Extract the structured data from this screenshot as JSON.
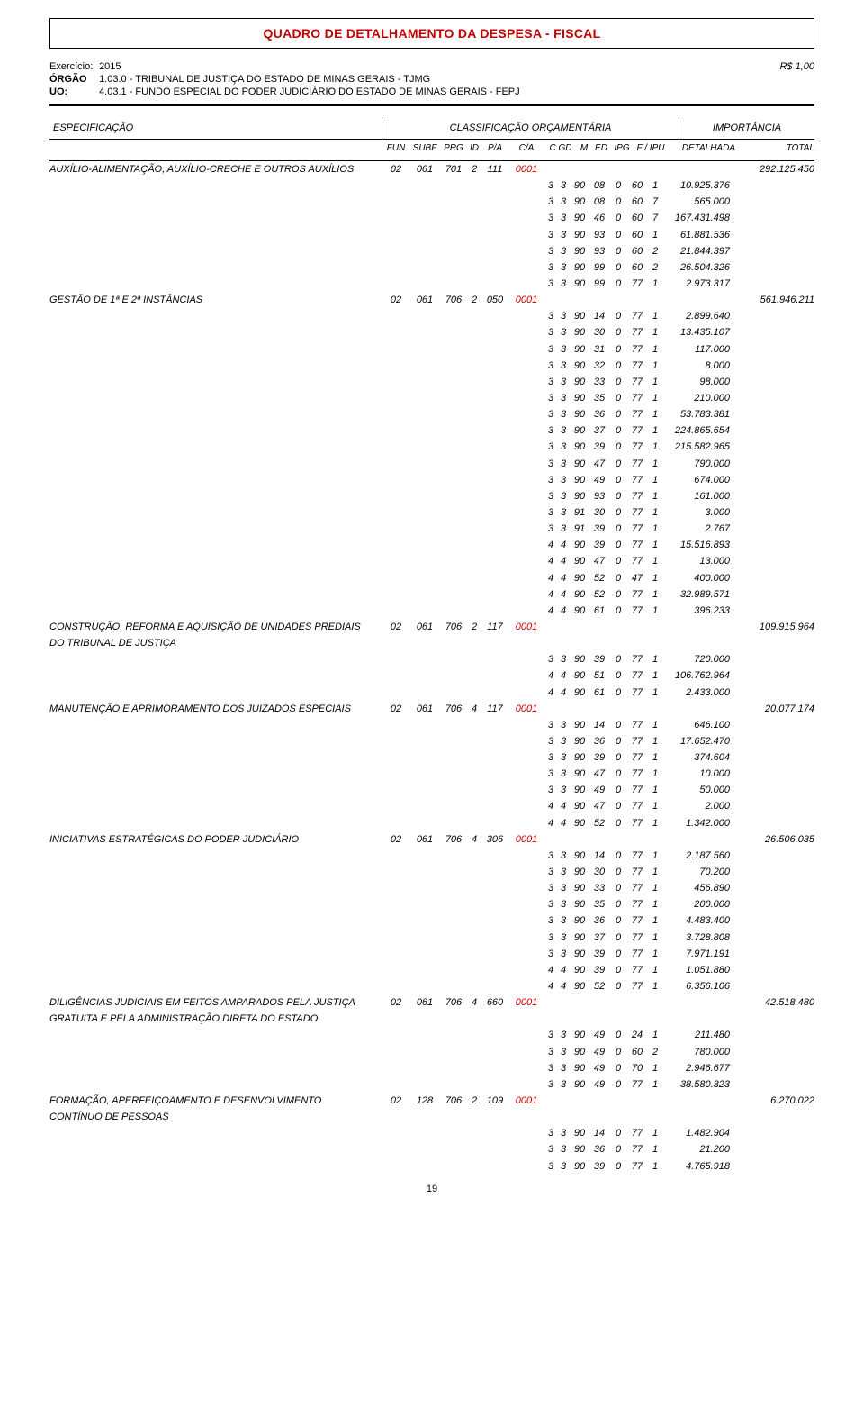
{
  "colors": {
    "accent": "#c00000",
    "text": "#000000",
    "bg": "#ffffff"
  },
  "title": "QUADRO DE DETALHAMENTO DA DESPESA - FISCAL",
  "currency_note": "R$ 1,00",
  "exercicio_label": "Exercício:",
  "exercicio_value": "2015",
  "orgao_label": "ÓRGÃO",
  "orgao_value": "1.03.0  -  TRIBUNAL DE JUSTIÇA DO ESTADO DE MINAS GERAIS  -  TJMG",
  "uo_label": "UO:",
  "uo_value": "4.03.1  -  FUNDO ESPECIAL DO PODER JUDICIÁRIO DO ESTADO DE MINAS GERAIS  -  FEPJ",
  "col_headers": {
    "spec": "ESPECIFICAÇÃO",
    "class": "CLASSIFICAÇÃO ORÇAMENTÁRIA",
    "imp": "IMPORTÂNCIA"
  },
  "subcol_headers": {
    "fun": "FUN",
    "subf": "SUBF",
    "prg": "PRG",
    "id": "ID",
    "pa": "P/A",
    "ca": "C/A",
    "cgd": "C GD",
    "m": "M",
    "ed": "ED",
    "ipg": "IPG",
    "fipu": "F / IPU",
    "det": "DETALHADA",
    "tot": "TOTAL"
  },
  "page_number": "19",
  "groups": [
    {
      "spec": "AUXÍLIO-ALIMENTAÇÃO, AUXÍLIO-CRECHE E OUTROS AUXÍLIOS",
      "fun": "02",
      "subf": "061",
      "prg": "701",
      "id": "2",
      "pa": "111",
      "ca": "0001",
      "total": "292.125.450",
      "rows": [
        {
          "c": "3",
          "gd": "3",
          "m": "90",
          "ed": "08",
          "ipg": "0",
          "f": "60",
          "ipu": "1",
          "val": "10.925.376"
        },
        {
          "c": "3",
          "gd": "3",
          "m": "90",
          "ed": "08",
          "ipg": "0",
          "f": "60",
          "ipu": "7",
          "val": "565.000"
        },
        {
          "c": "3",
          "gd": "3",
          "m": "90",
          "ed": "46",
          "ipg": "0",
          "f": "60",
          "ipu": "7",
          "val": "167.431.498"
        },
        {
          "c": "3",
          "gd": "3",
          "m": "90",
          "ed": "93",
          "ipg": "0",
          "f": "60",
          "ipu": "1",
          "val": "61.881.536"
        },
        {
          "c": "3",
          "gd": "3",
          "m": "90",
          "ed": "93",
          "ipg": "0",
          "f": "60",
          "ipu": "2",
          "val": "21.844.397"
        },
        {
          "c": "3",
          "gd": "3",
          "m": "90",
          "ed": "99",
          "ipg": "0",
          "f": "60",
          "ipu": "2",
          "val": "26.504.326"
        },
        {
          "c": "3",
          "gd": "3",
          "m": "90",
          "ed": "99",
          "ipg": "0",
          "f": "77",
          "ipu": "1",
          "val": "2.973.317"
        }
      ]
    },
    {
      "spec": "GESTÃO DE 1ª E 2ª INSTÂNCIAS",
      "fun": "02",
      "subf": "061",
      "prg": "706",
      "id": "2",
      "pa": "050",
      "ca": "0001",
      "total": "561.946.211",
      "rows": [
        {
          "c": "3",
          "gd": "3",
          "m": "90",
          "ed": "14",
          "ipg": "0",
          "f": "77",
          "ipu": "1",
          "val": "2.899.640"
        },
        {
          "c": "3",
          "gd": "3",
          "m": "90",
          "ed": "30",
          "ipg": "0",
          "f": "77",
          "ipu": "1",
          "val": "13.435.107"
        },
        {
          "c": "3",
          "gd": "3",
          "m": "90",
          "ed": "31",
          "ipg": "0",
          "f": "77",
          "ipu": "1",
          "val": "117.000"
        },
        {
          "c": "3",
          "gd": "3",
          "m": "90",
          "ed": "32",
          "ipg": "0",
          "f": "77",
          "ipu": "1",
          "val": "8.000"
        },
        {
          "c": "3",
          "gd": "3",
          "m": "90",
          "ed": "33",
          "ipg": "0",
          "f": "77",
          "ipu": "1",
          "val": "98.000"
        },
        {
          "c": "3",
          "gd": "3",
          "m": "90",
          "ed": "35",
          "ipg": "0",
          "f": "77",
          "ipu": "1",
          "val": "210.000"
        },
        {
          "c": "3",
          "gd": "3",
          "m": "90",
          "ed": "36",
          "ipg": "0",
          "f": "77",
          "ipu": "1",
          "val": "53.783.381"
        },
        {
          "c": "3",
          "gd": "3",
          "m": "90",
          "ed": "37",
          "ipg": "0",
          "f": "77",
          "ipu": "1",
          "val": "224.865.654"
        },
        {
          "c": "3",
          "gd": "3",
          "m": "90",
          "ed": "39",
          "ipg": "0",
          "f": "77",
          "ipu": "1",
          "val": "215.582.965"
        },
        {
          "c": "3",
          "gd": "3",
          "m": "90",
          "ed": "47",
          "ipg": "0",
          "f": "77",
          "ipu": "1",
          "val": "790.000"
        },
        {
          "c": "3",
          "gd": "3",
          "m": "90",
          "ed": "49",
          "ipg": "0",
          "f": "77",
          "ipu": "1",
          "val": "674.000"
        },
        {
          "c": "3",
          "gd": "3",
          "m": "90",
          "ed": "93",
          "ipg": "0",
          "f": "77",
          "ipu": "1",
          "val": "161.000"
        },
        {
          "c": "3",
          "gd": "3",
          "m": "91",
          "ed": "30",
          "ipg": "0",
          "f": "77",
          "ipu": "1",
          "val": "3.000"
        },
        {
          "c": "3",
          "gd": "3",
          "m": "91",
          "ed": "39",
          "ipg": "0",
          "f": "77",
          "ipu": "1",
          "val": "2.767"
        },
        {
          "c": "4",
          "gd": "4",
          "m": "90",
          "ed": "39",
          "ipg": "0",
          "f": "77",
          "ipu": "1",
          "val": "15.516.893"
        },
        {
          "c": "4",
          "gd": "4",
          "m": "90",
          "ed": "47",
          "ipg": "0",
          "f": "77",
          "ipu": "1",
          "val": "13.000"
        },
        {
          "c": "4",
          "gd": "4",
          "m": "90",
          "ed": "52",
          "ipg": "0",
          "f": "47",
          "ipu": "1",
          "val": "400.000"
        },
        {
          "c": "4",
          "gd": "4",
          "m": "90",
          "ed": "52",
          "ipg": "0",
          "f": "77",
          "ipu": "1",
          "val": "32.989.571"
        },
        {
          "c": "4",
          "gd": "4",
          "m": "90",
          "ed": "61",
          "ipg": "0",
          "f": "77",
          "ipu": "1",
          "val": "396.233"
        }
      ]
    },
    {
      "spec": "CONSTRUÇÃO, REFORMA E AQUISIÇÃO DE UNIDADES PREDIAIS DO TRIBUNAL DE JUSTIÇA",
      "fun": "02",
      "subf": "061",
      "prg": "706",
      "id": "2",
      "pa": "117",
      "ca": "0001",
      "total": "109.915.964",
      "rows": [
        {
          "c": "3",
          "gd": "3",
          "m": "90",
          "ed": "39",
          "ipg": "0",
          "f": "77",
          "ipu": "1",
          "val": "720.000"
        },
        {
          "c": "4",
          "gd": "4",
          "m": "90",
          "ed": "51",
          "ipg": "0",
          "f": "77",
          "ipu": "1",
          "val": "106.762.964"
        },
        {
          "c": "4",
          "gd": "4",
          "m": "90",
          "ed": "61",
          "ipg": "0",
          "f": "77",
          "ipu": "1",
          "val": "2.433.000"
        }
      ]
    },
    {
      "spec": "MANUTENÇÃO E APRIMORAMENTO DOS JUIZADOS ESPECIAIS",
      "fun": "02",
      "subf": "061",
      "prg": "706",
      "id": "4",
      "pa": "117",
      "ca": "0001",
      "total": "20.077.174",
      "rows": [
        {
          "c": "3",
          "gd": "3",
          "m": "90",
          "ed": "14",
          "ipg": "0",
          "f": "77",
          "ipu": "1",
          "val": "646.100"
        },
        {
          "c": "3",
          "gd": "3",
          "m": "90",
          "ed": "36",
          "ipg": "0",
          "f": "77",
          "ipu": "1",
          "val": "17.652.470"
        },
        {
          "c": "3",
          "gd": "3",
          "m": "90",
          "ed": "39",
          "ipg": "0",
          "f": "77",
          "ipu": "1",
          "val": "374.604"
        },
        {
          "c": "3",
          "gd": "3",
          "m": "90",
          "ed": "47",
          "ipg": "0",
          "f": "77",
          "ipu": "1",
          "val": "10.000"
        },
        {
          "c": "3",
          "gd": "3",
          "m": "90",
          "ed": "49",
          "ipg": "0",
          "f": "77",
          "ipu": "1",
          "val": "50.000"
        },
        {
          "c": "4",
          "gd": "4",
          "m": "90",
          "ed": "47",
          "ipg": "0",
          "f": "77",
          "ipu": "1",
          "val": "2.000"
        },
        {
          "c": "4",
          "gd": "4",
          "m": "90",
          "ed": "52",
          "ipg": "0",
          "f": "77",
          "ipu": "1",
          "val": "1.342.000"
        }
      ]
    },
    {
      "spec": "INICIATIVAS ESTRATÉGICAS DO PODER JUDICIÁRIO",
      "fun": "02",
      "subf": "061",
      "prg": "706",
      "id": "4",
      "pa": "306",
      "ca": "0001",
      "total": "26.506.035",
      "rows": [
        {
          "c": "3",
          "gd": "3",
          "m": "90",
          "ed": "14",
          "ipg": "0",
          "f": "77",
          "ipu": "1",
          "val": "2.187.560"
        },
        {
          "c": "3",
          "gd": "3",
          "m": "90",
          "ed": "30",
          "ipg": "0",
          "f": "77",
          "ipu": "1",
          "val": "70.200"
        },
        {
          "c": "3",
          "gd": "3",
          "m": "90",
          "ed": "33",
          "ipg": "0",
          "f": "77",
          "ipu": "1",
          "val": "456.890"
        },
        {
          "c": "3",
          "gd": "3",
          "m": "90",
          "ed": "35",
          "ipg": "0",
          "f": "77",
          "ipu": "1",
          "val": "200.000"
        },
        {
          "c": "3",
          "gd": "3",
          "m": "90",
          "ed": "36",
          "ipg": "0",
          "f": "77",
          "ipu": "1",
          "val": "4.483.400"
        },
        {
          "c": "3",
          "gd": "3",
          "m": "90",
          "ed": "37",
          "ipg": "0",
          "f": "77",
          "ipu": "1",
          "val": "3.728.808"
        },
        {
          "c": "3",
          "gd": "3",
          "m": "90",
          "ed": "39",
          "ipg": "0",
          "f": "77",
          "ipu": "1",
          "val": "7.971.191"
        },
        {
          "c": "4",
          "gd": "4",
          "m": "90",
          "ed": "39",
          "ipg": "0",
          "f": "77",
          "ipu": "1",
          "val": "1.051.880"
        },
        {
          "c": "4",
          "gd": "4",
          "m": "90",
          "ed": "52",
          "ipg": "0",
          "f": "77",
          "ipu": "1",
          "val": "6.356.106"
        }
      ]
    },
    {
      "spec": "DILIGÊNCIAS JUDICIAIS EM FEITOS AMPARADOS PELA JUSTIÇA GRATUITA  E PELA ADMINISTRAÇÃO DIRETA DO ESTADO",
      "fun": "02",
      "subf": "061",
      "prg": "706",
      "id": "4",
      "pa": "660",
      "ca": "0001",
      "total": "42.518.480",
      "rows": [
        {
          "c": "3",
          "gd": "3",
          "m": "90",
          "ed": "49",
          "ipg": "0",
          "f": "24",
          "ipu": "1",
          "val": "211.480"
        },
        {
          "c": "3",
          "gd": "3",
          "m": "90",
          "ed": "49",
          "ipg": "0",
          "f": "60",
          "ipu": "2",
          "val": "780.000"
        },
        {
          "c": "3",
          "gd": "3",
          "m": "90",
          "ed": "49",
          "ipg": "0",
          "f": "70",
          "ipu": "1",
          "val": "2.946.677"
        },
        {
          "c": "3",
          "gd": "3",
          "m": "90",
          "ed": "49",
          "ipg": "0",
          "f": "77",
          "ipu": "1",
          "val": "38.580.323"
        }
      ]
    },
    {
      "spec": "FORMAÇÃO, APERFEIÇOAMENTO E DESENVOLVIMENTO CONTÍNUO DE PESSOAS",
      "fun": "02",
      "subf": "128",
      "prg": "706",
      "id": "2",
      "pa": "109",
      "ca": "0001",
      "total": "6.270.022",
      "rows": [
        {
          "c": "3",
          "gd": "3",
          "m": "90",
          "ed": "14",
          "ipg": "0",
          "f": "77",
          "ipu": "1",
          "val": "1.482.904"
        },
        {
          "c": "3",
          "gd": "3",
          "m": "90",
          "ed": "36",
          "ipg": "0",
          "f": "77",
          "ipu": "1",
          "val": "21.200"
        },
        {
          "c": "3",
          "gd": "3",
          "m": "90",
          "ed": "39",
          "ipg": "0",
          "f": "77",
          "ipu": "1",
          "val": "4.765.918"
        }
      ]
    }
  ]
}
